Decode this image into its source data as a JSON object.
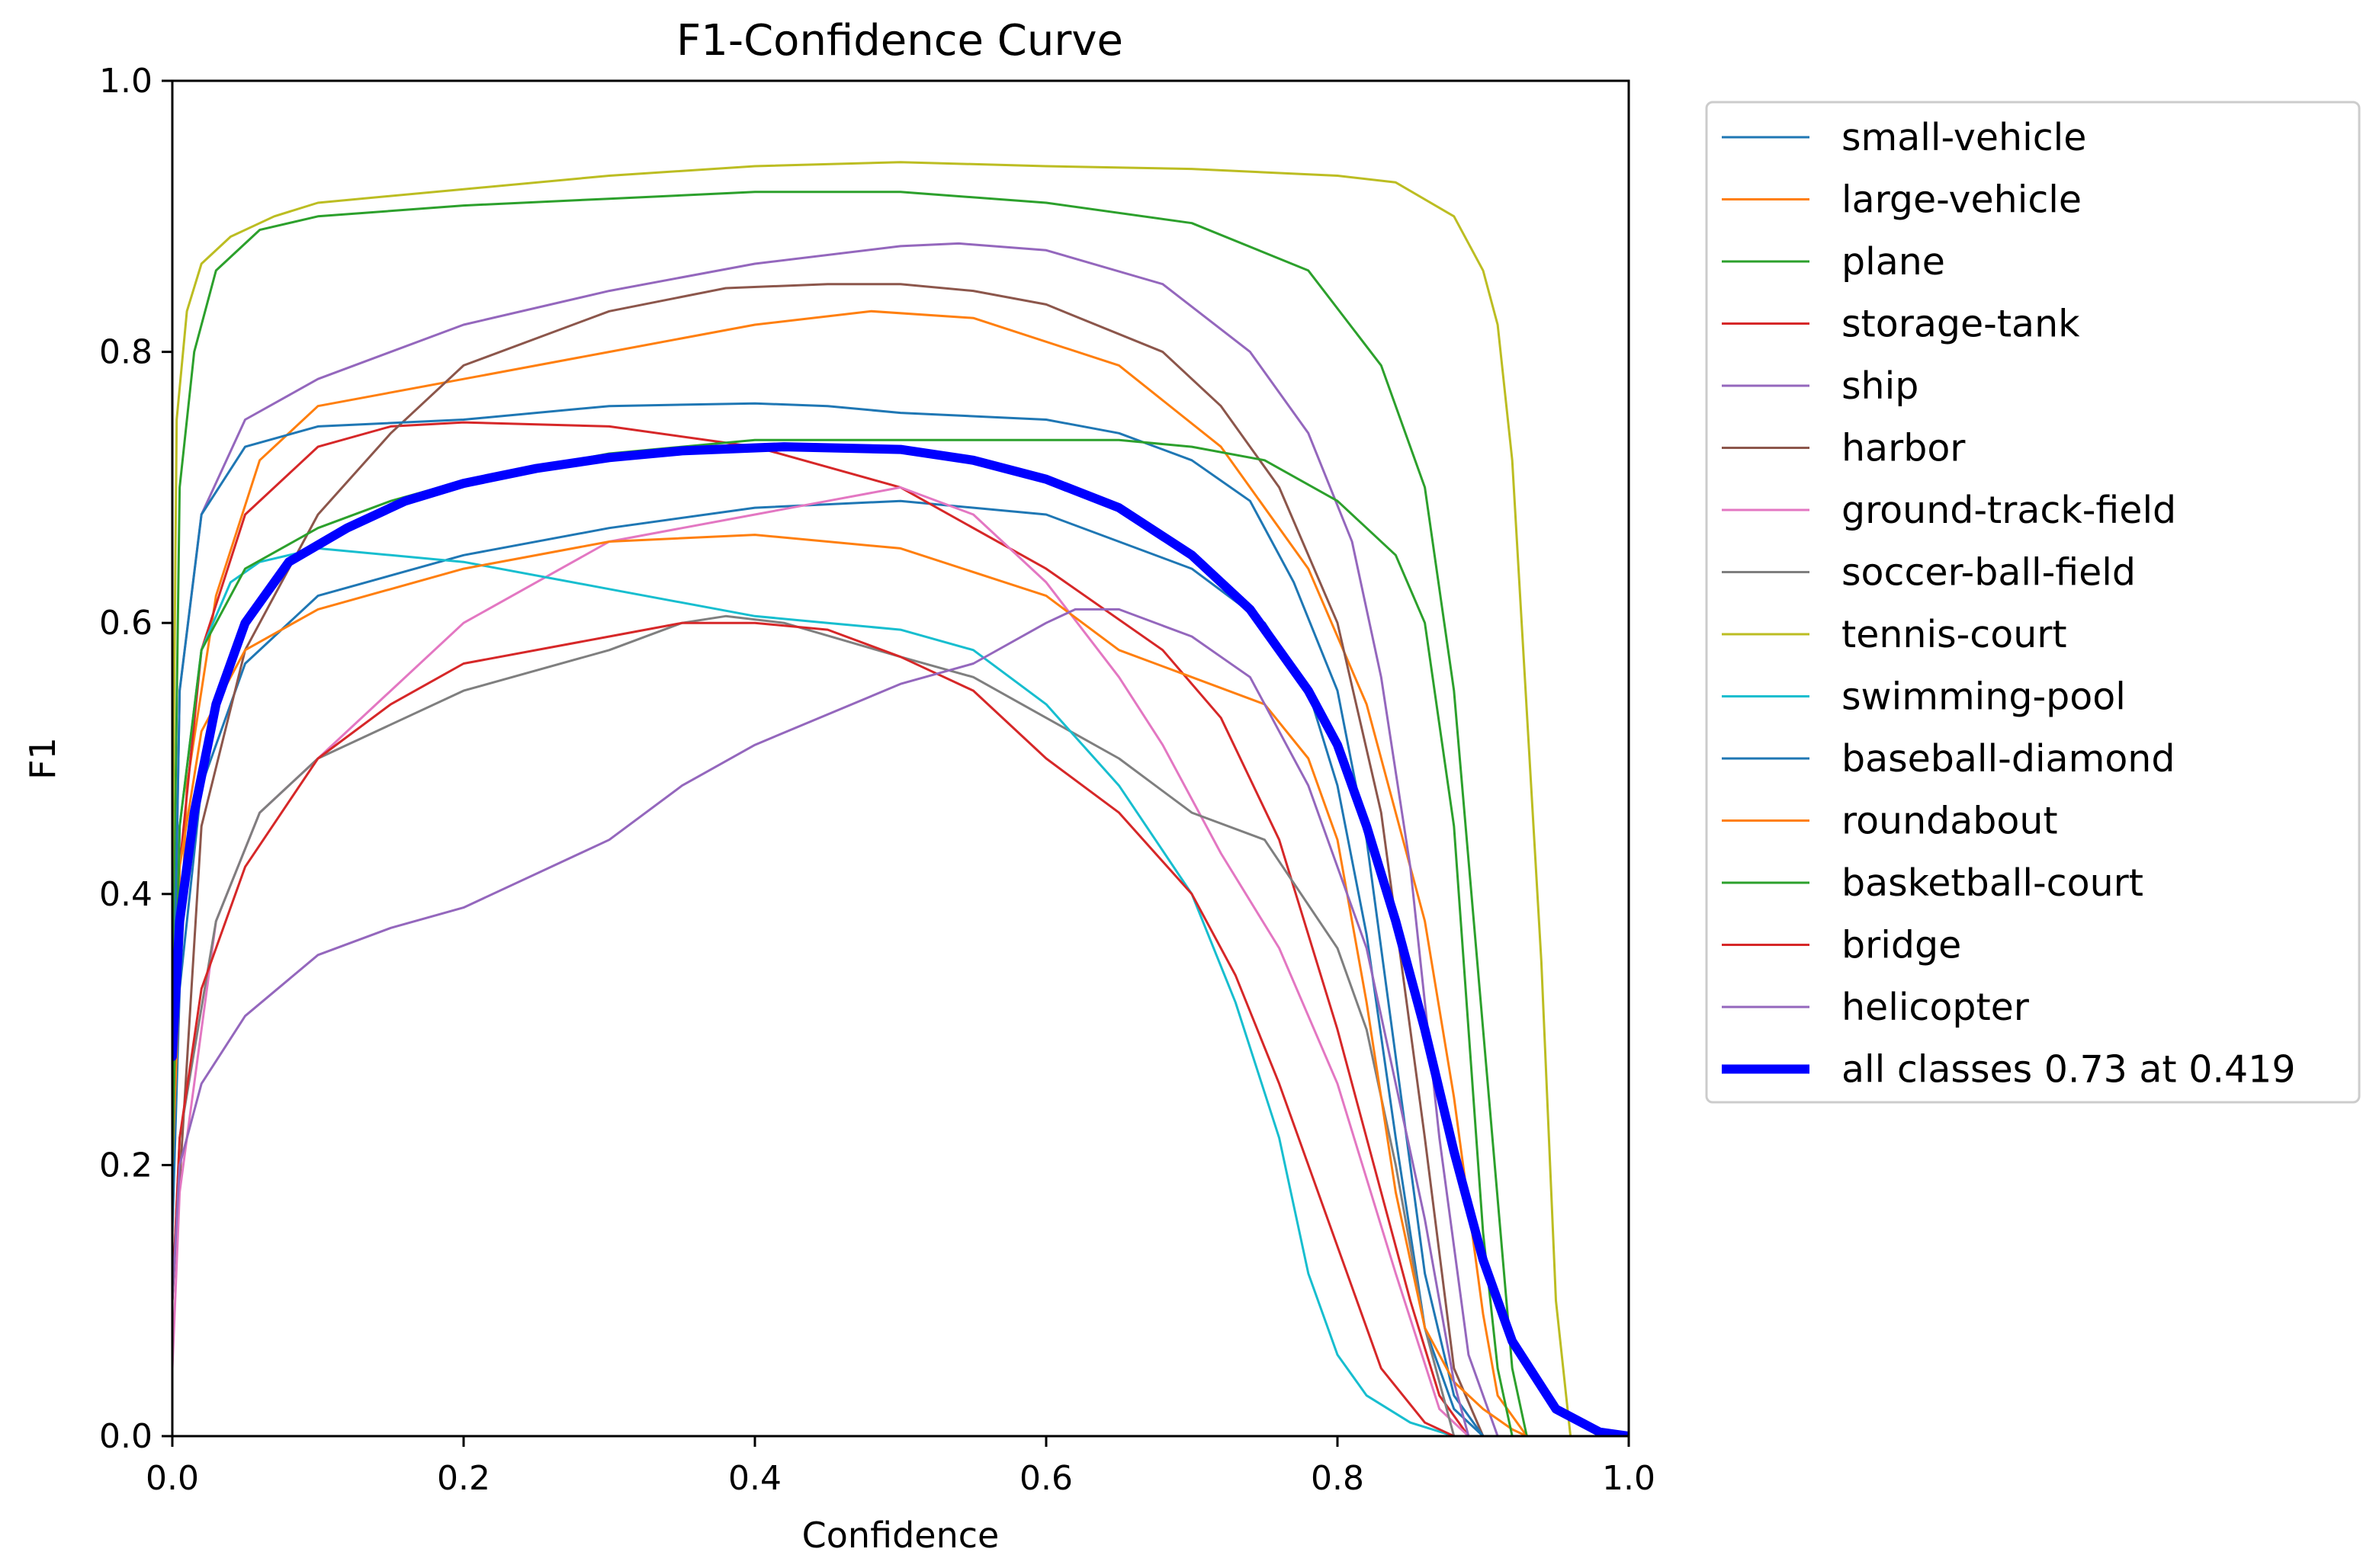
{
  "chart_data": {
    "type": "line",
    "title": "F1-Confidence Curve",
    "xlabel": "Confidence",
    "ylabel": "F1",
    "xlim": [
      0.0,
      1.0
    ],
    "ylim": [
      0.0,
      1.0
    ],
    "xticks": [
      "0.0",
      "0.2",
      "0.4",
      "0.6",
      "0.8",
      "1.0"
    ],
    "yticks": [
      "0.0",
      "0.2",
      "0.4",
      "0.6",
      "0.8",
      "1.0"
    ],
    "grid": false,
    "legend_position": "outside-right",
    "series": [
      {
        "name": "small-vehicle",
        "color": "#1f77b4",
        "x": [
          0,
          0.005,
          0.02,
          0.05,
          0.1,
          0.2,
          0.3,
          0.4,
          0.5,
          0.6,
          0.7,
          0.75,
          0.78,
          0.8,
          0.82,
          0.84,
          0.86,
          0.88,
          0.9
        ],
        "y": [
          0.15,
          0.33,
          0.48,
          0.57,
          0.62,
          0.65,
          0.67,
          0.685,
          0.69,
          0.68,
          0.64,
          0.6,
          0.55,
          0.48,
          0.37,
          0.22,
          0.08,
          0.02,
          0.0
        ]
      },
      {
        "name": "large-vehicle",
        "color": "#ff7f0e",
        "x": [
          0,
          0.01,
          0.03,
          0.06,
          0.1,
          0.2,
          0.3,
          0.4,
          0.48,
          0.55,
          0.65,
          0.72,
          0.78,
          0.82,
          0.86,
          0.88,
          0.9,
          0.91,
          0.93
        ],
        "y": [
          0.2,
          0.48,
          0.62,
          0.72,
          0.76,
          0.78,
          0.8,
          0.82,
          0.83,
          0.825,
          0.79,
          0.73,
          0.64,
          0.54,
          0.38,
          0.25,
          0.09,
          0.03,
          0.0
        ]
      },
      {
        "name": "plane",
        "color": "#2ca02c",
        "x": [
          0,
          0.005,
          0.015,
          0.03,
          0.06,
          0.1,
          0.2,
          0.3,
          0.4,
          0.5,
          0.6,
          0.7,
          0.78,
          0.83,
          0.86,
          0.88,
          0.9,
          0.92,
          0.93
        ],
        "y": [
          0.3,
          0.7,
          0.8,
          0.86,
          0.89,
          0.9,
          0.908,
          0.913,
          0.918,
          0.918,
          0.91,
          0.895,
          0.86,
          0.79,
          0.7,
          0.55,
          0.3,
          0.05,
          0.0
        ]
      },
      {
        "name": "storage-tank",
        "color": "#d62728",
        "x": [
          0,
          0.005,
          0.02,
          0.05,
          0.1,
          0.15,
          0.2,
          0.3,
          0.4,
          0.5,
          0.6,
          0.68,
          0.72,
          0.76,
          0.8,
          0.83,
          0.85,
          0.87,
          0.89,
          0.9
        ],
        "y": [
          0.2,
          0.42,
          0.58,
          0.68,
          0.73,
          0.745,
          0.748,
          0.745,
          0.73,
          0.7,
          0.64,
          0.58,
          0.53,
          0.44,
          0.3,
          0.18,
          0.1,
          0.03,
          0.0,
          0.0
        ]
      },
      {
        "name": "ship",
        "color": "#9467bd",
        "x": [
          0,
          0.005,
          0.02,
          0.05,
          0.1,
          0.2,
          0.3,
          0.4,
          0.5,
          0.54,
          0.6,
          0.68,
          0.74,
          0.78,
          0.81,
          0.83,
          0.85,
          0.87,
          0.89,
          0.91
        ],
        "y": [
          0.25,
          0.55,
          0.68,
          0.75,
          0.78,
          0.82,
          0.845,
          0.865,
          0.878,
          0.88,
          0.875,
          0.85,
          0.8,
          0.74,
          0.66,
          0.56,
          0.42,
          0.22,
          0.06,
          0.0
        ]
      },
      {
        "name": "harbor",
        "color": "#8c564b",
        "x": [
          0,
          0.02,
          0.05,
          0.1,
          0.15,
          0.2,
          0.3,
          0.38,
          0.45,
          0.5,
          0.55,
          0.6,
          0.68,
          0.72,
          0.76,
          0.8,
          0.83,
          0.86,
          0.88,
          0.9
        ],
        "y": [
          0.1,
          0.45,
          0.58,
          0.68,
          0.74,
          0.79,
          0.83,
          0.847,
          0.85,
          0.85,
          0.845,
          0.835,
          0.8,
          0.76,
          0.7,
          0.6,
          0.46,
          0.22,
          0.05,
          0.0
        ]
      },
      {
        "name": "ground-track-field",
        "color": "#e377c2",
        "x": [
          0,
          0.005,
          0.03,
          0.06,
          0.1,
          0.15,
          0.2,
          0.3,
          0.4,
          0.45,
          0.5,
          0.55,
          0.6,
          0.65,
          0.68,
          0.72,
          0.76,
          0.8,
          0.84,
          0.87,
          0.89
        ],
        "y": [
          0.05,
          0.18,
          0.38,
          0.46,
          0.5,
          0.55,
          0.6,
          0.66,
          0.68,
          0.69,
          0.7,
          0.68,
          0.63,
          0.56,
          0.51,
          0.43,
          0.36,
          0.26,
          0.12,
          0.02,
          0.0
        ]
      },
      {
        "name": "soccer-ball-field",
        "color": "#7f7f7f",
        "x": [
          0,
          0.005,
          0.03,
          0.06,
          0.1,
          0.2,
          0.3,
          0.35,
          0.38,
          0.42,
          0.5,
          0.55,
          0.6,
          0.65,
          0.7,
          0.75,
          0.8,
          0.82,
          0.84,
          0.86,
          0.88
        ],
        "y": [
          0.1,
          0.22,
          0.38,
          0.46,
          0.5,
          0.55,
          0.58,
          0.6,
          0.605,
          0.6,
          0.575,
          0.56,
          0.53,
          0.5,
          0.46,
          0.44,
          0.36,
          0.3,
          0.2,
          0.08,
          0.0
        ]
      },
      {
        "name": "tennis-court",
        "color": "#bcbd22",
        "x": [
          0,
          0.003,
          0.01,
          0.02,
          0.04,
          0.07,
          0.1,
          0.2,
          0.3,
          0.4,
          0.5,
          0.6,
          0.7,
          0.8,
          0.84,
          0.88,
          0.9,
          0.91,
          0.92,
          0.94,
          0.95,
          0.96
        ],
        "y": [
          0.4,
          0.75,
          0.83,
          0.865,
          0.885,
          0.9,
          0.91,
          0.92,
          0.93,
          0.937,
          0.94,
          0.937,
          0.935,
          0.93,
          0.925,
          0.9,
          0.86,
          0.82,
          0.72,
          0.35,
          0.1,
          0.0
        ]
      },
      {
        "name": "swimming-pool",
        "color": "#17becf",
        "x": [
          0,
          0.005,
          0.02,
          0.04,
          0.06,
          0.1,
          0.15,
          0.2,
          0.3,
          0.4,
          0.45,
          0.5,
          0.55,
          0.6,
          0.65,
          0.7,
          0.73,
          0.76,
          0.78,
          0.8,
          0.82,
          0.85,
          0.88
        ],
        "y": [
          0.2,
          0.45,
          0.58,
          0.63,
          0.645,
          0.655,
          0.65,
          0.645,
          0.625,
          0.605,
          0.6,
          0.595,
          0.58,
          0.54,
          0.48,
          0.4,
          0.32,
          0.22,
          0.12,
          0.06,
          0.03,
          0.01,
          0.0
        ]
      },
      {
        "name": "baseball-diamond",
        "color": "#1f77b4",
        "x": [
          0,
          0.005,
          0.02,
          0.05,
          0.1,
          0.2,
          0.3,
          0.4,
          0.45,
          0.5,
          0.6,
          0.65,
          0.7,
          0.74,
          0.77,
          0.8,
          0.82,
          0.84,
          0.86,
          0.88,
          0.9
        ],
        "y": [
          0.25,
          0.55,
          0.68,
          0.73,
          0.745,
          0.75,
          0.76,
          0.762,
          0.76,
          0.755,
          0.75,
          0.74,
          0.72,
          0.69,
          0.63,
          0.55,
          0.44,
          0.28,
          0.12,
          0.03,
          0.0
        ]
      },
      {
        "name": "roundabout",
        "color": "#ff7f0e",
        "x": [
          0,
          0.005,
          0.02,
          0.05,
          0.1,
          0.2,
          0.3,
          0.4,
          0.45,
          0.5,
          0.6,
          0.65,
          0.7,
          0.75,
          0.78,
          0.8,
          0.82,
          0.84,
          0.86,
          0.88,
          0.9,
          0.92,
          0.93
        ],
        "y": [
          0.2,
          0.42,
          0.52,
          0.58,
          0.61,
          0.64,
          0.66,
          0.665,
          0.66,
          0.655,
          0.62,
          0.58,
          0.56,
          0.54,
          0.5,
          0.44,
          0.32,
          0.18,
          0.08,
          0.04,
          0.02,
          0.005,
          0.0
        ]
      },
      {
        "name": "basketball-court",
        "color": "#2ca02c",
        "x": [
          0,
          0.005,
          0.02,
          0.05,
          0.1,
          0.15,
          0.2,
          0.3,
          0.4,
          0.5,
          0.55,
          0.6,
          0.65,
          0.7,
          0.75,
          0.8,
          0.82,
          0.84,
          0.86,
          0.88,
          0.89,
          0.9,
          0.91,
          0.92
        ],
        "y": [
          0.2,
          0.45,
          0.58,
          0.64,
          0.67,
          0.69,
          0.705,
          0.725,
          0.735,
          0.735,
          0.735,
          0.735,
          0.735,
          0.73,
          0.72,
          0.69,
          0.67,
          0.65,
          0.6,
          0.45,
          0.3,
          0.15,
          0.05,
          0.0
        ]
      },
      {
        "name": "bridge",
        "color": "#d62728",
        "x": [
          0,
          0.005,
          0.02,
          0.05,
          0.1,
          0.15,
          0.2,
          0.3,
          0.35,
          0.4,
          0.45,
          0.5,
          0.55,
          0.6,
          0.65,
          0.7,
          0.73,
          0.76,
          0.8,
          0.83,
          0.86,
          0.88
        ],
        "y": [
          0.1,
          0.22,
          0.33,
          0.42,
          0.5,
          0.54,
          0.57,
          0.59,
          0.6,
          0.6,
          0.595,
          0.575,
          0.55,
          0.5,
          0.46,
          0.4,
          0.34,
          0.26,
          0.14,
          0.05,
          0.01,
          0.0
        ]
      },
      {
        "name": "helicopter",
        "color": "#9467bd",
        "x": [
          0,
          0.005,
          0.02,
          0.05,
          0.1,
          0.15,
          0.2,
          0.3,
          0.35,
          0.4,
          0.5,
          0.55,
          0.6,
          0.62,
          0.65,
          0.7,
          0.72,
          0.74,
          0.76,
          0.78,
          0.8,
          0.82,
          0.84,
          0.86,
          0.88,
          0.89
        ],
        "y": [
          0.1,
          0.2,
          0.26,
          0.31,
          0.355,
          0.375,
          0.39,
          0.44,
          0.48,
          0.51,
          0.555,
          0.57,
          0.6,
          0.61,
          0.61,
          0.59,
          0.575,
          0.56,
          0.52,
          0.48,
          0.42,
          0.36,
          0.26,
          0.16,
          0.04,
          0.0
        ]
      },
      {
        "name": "all classes 0.73 at 0.419",
        "color": "#0000ff",
        "bold": true,
        "x": [
          0,
          0.005,
          0.015,
          0.03,
          0.05,
          0.08,
          0.12,
          0.16,
          0.2,
          0.25,
          0.3,
          0.35,
          0.42,
          0.5,
          0.55,
          0.6,
          0.65,
          0.7,
          0.74,
          0.78,
          0.8,
          0.82,
          0.84,
          0.86,
          0.88,
          0.9,
          0.92,
          0.95,
          0.98,
          1.0
        ],
        "y": [
          0.28,
          0.38,
          0.46,
          0.54,
          0.6,
          0.645,
          0.67,
          0.69,
          0.703,
          0.714,
          0.722,
          0.727,
          0.73,
          0.728,
          0.72,
          0.706,
          0.685,
          0.65,
          0.61,
          0.55,
          0.51,
          0.45,
          0.38,
          0.3,
          0.21,
          0.13,
          0.07,
          0.02,
          0.003,
          0.0
        ]
      }
    ]
  }
}
